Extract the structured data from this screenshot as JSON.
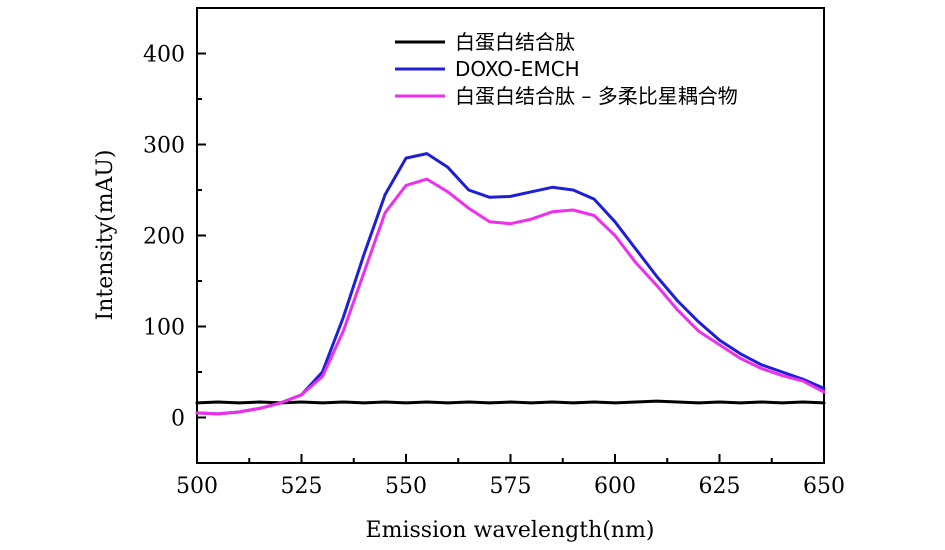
{
  "chart_data": {
    "type": "line",
    "xlabel": "Emission wavelength(nm)",
    "ylabel": "Intensity(mAU)",
    "xlim": [
      500,
      650
    ],
    "ylim": [
      -50,
      450
    ],
    "xticks": [
      500,
      525,
      550,
      575,
      600,
      625,
      650
    ],
    "yticks": [
      0,
      100,
      200,
      300,
      400
    ],
    "grid": false,
    "legend_position": "top-center",
    "series": [
      {
        "name": "白蛋白结合肽",
        "color": "#000000",
        "x": [
          500,
          505,
          510,
          515,
          520,
          525,
          530,
          535,
          540,
          545,
          550,
          555,
          560,
          565,
          570,
          575,
          580,
          585,
          590,
          595,
          600,
          605,
          610,
          615,
          620,
          625,
          630,
          635,
          640,
          645,
          650
        ],
        "y": [
          16,
          17,
          16,
          17,
          16,
          17,
          16,
          17,
          16,
          17,
          16,
          17,
          16,
          17,
          16,
          17,
          16,
          17,
          16,
          17,
          16,
          17,
          18,
          17,
          16,
          17,
          16,
          17,
          16,
          17,
          16
        ]
      },
      {
        "name": "DOXO-EMCH",
        "color": "#1f1fd6",
        "x": [
          500,
          505,
          510,
          515,
          520,
          525,
          530,
          535,
          540,
          545,
          550,
          555,
          560,
          565,
          570,
          575,
          580,
          585,
          590,
          595,
          600,
          605,
          610,
          615,
          620,
          625,
          630,
          635,
          640,
          645,
          650
        ],
        "y": [
          5,
          4,
          6,
          10,
          16,
          25,
          50,
          110,
          180,
          245,
          285,
          290,
          275,
          250,
          242,
          243,
          248,
          253,
          250,
          240,
          215,
          185,
          155,
          128,
          105,
          85,
          70,
          58,
          50,
          42,
          32
        ]
      },
      {
        "name": "白蛋白结合肽 – 多柔比星耦合物",
        "color": "#ee2fee",
        "x": [
          500,
          505,
          510,
          515,
          520,
          525,
          530,
          535,
          540,
          545,
          550,
          555,
          560,
          565,
          570,
          575,
          580,
          585,
          590,
          595,
          600,
          605,
          610,
          615,
          620,
          625,
          630,
          635,
          640,
          645,
          650
        ],
        "y": [
          5,
          4,
          6,
          10,
          16,
          25,
          45,
          95,
          160,
          225,
          255,
          262,
          248,
          230,
          215,
          213,
          218,
          226,
          228,
          222,
          200,
          170,
          145,
          118,
          95,
          80,
          65,
          54,
          46,
          40,
          28
        ]
      }
    ]
  }
}
